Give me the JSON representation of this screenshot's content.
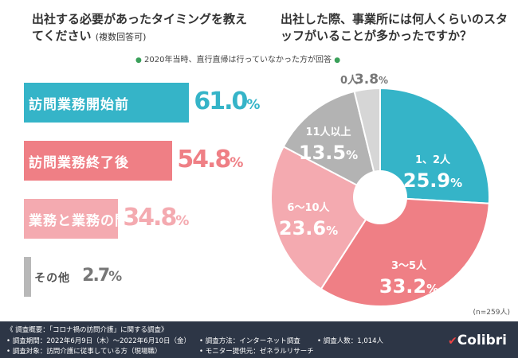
{
  "left_chart": {
    "title_main": "出社する必要があったタイミングを教えてください",
    "title_sub": "(複数回答可)"
  },
  "right_chart": {
    "title": "出社した際、事業所には何人くらいのスタッフがいることが多かったですか？",
    "note": "2020年当時、直行直帰は行っていなかった方が回答",
    "n_label": "(n=259人)"
  },
  "chart_data": [
    {
      "type": "bar",
      "orientation": "horizontal",
      "title": "出社する必要があったタイミングを教えてください (複数回答可)",
      "categories": [
        "訪問業務開始前",
        "訪問業務終了後",
        "業務と業務の間",
        "その他"
      ],
      "values": [
        61.0,
        54.8,
        34.8,
        2.7
      ],
      "value_labels": [
        "61.0",
        "54.8",
        "34.8",
        "2.7"
      ],
      "unit": "%",
      "colors": [
        "#35b4c8",
        "#ef7f85",
        "#f4aab0",
        "#b8b8b8"
      ]
    },
    {
      "type": "pie",
      "title": "出社した際、事業所には何人くらいのスタッフがいることが多かったですか？",
      "categories": [
        "1、2人",
        "3〜5人",
        "6〜10人",
        "11人以上",
        "0人"
      ],
      "values": [
        25.9,
        33.2,
        23.6,
        13.5,
        3.8
      ],
      "value_labels": [
        "25.9",
        "33.2",
        "23.6",
        "13.5",
        "3.8"
      ],
      "unit": "%",
      "colors": [
        "#35b4c8",
        "#ef7f85",
        "#f4aab0",
        "#b3b3b3",
        "#d6d6d6"
      ],
      "start": "top, clockwise"
    }
  ],
  "footer": {
    "overview": "《 調査概要：「コロナ禍の訪問介護」に関する調査》",
    "period": "• 調査期間：2022年6月9日（木）〜2022年6月10日（金）",
    "method": "• 調査方法：インターネット調査",
    "count": "• 調査人数：1,014人",
    "target": "• 調査対象：訪問介護に従事している方（現場職）",
    "provider": "• モニター提供元：ゼネラルリサーチ",
    "brand": "Colibri"
  },
  "colors": {
    "accent_teal": "#35b4c8",
    "footer_bg": "#2d3646"
  }
}
